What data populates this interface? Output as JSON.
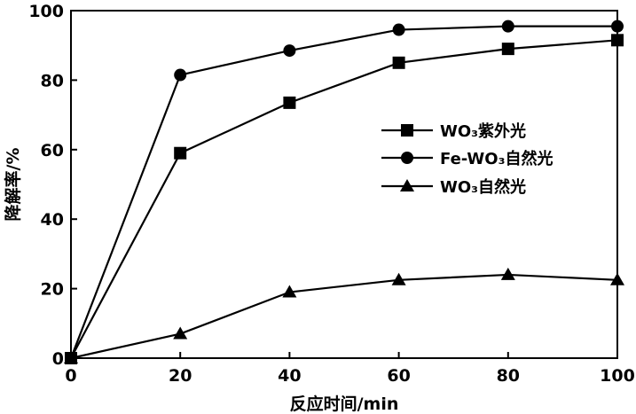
{
  "chart_data": {
    "type": "line",
    "x": [
      0,
      20,
      40,
      60,
      80,
      100
    ],
    "xlabel": "反应时间/min",
    "ylabel": "降解率/%",
    "xlim": [
      0,
      100
    ],
    "ylim": [
      0,
      100
    ],
    "xticks": [
      0,
      20,
      40,
      60,
      80,
      100
    ],
    "yticks": [
      0,
      20,
      40,
      60,
      80,
      100
    ],
    "grid": false,
    "legend_position": "right",
    "series": [
      {
        "name": "WO₃紫外光",
        "marker": "square",
        "values": [
          0,
          59,
          73.5,
          85,
          89,
          91.5
        ]
      },
      {
        "name": "Fe-WO₃自然光",
        "marker": "circle",
        "values": [
          0,
          81.5,
          88.5,
          94.5,
          95.5,
          95.5
        ]
      },
      {
        "name": "WO₃自然光",
        "marker": "triangle",
        "values": [
          0,
          7,
          19,
          22.5,
          24,
          22.5
        ]
      }
    ],
    "line_color": "#000000"
  }
}
